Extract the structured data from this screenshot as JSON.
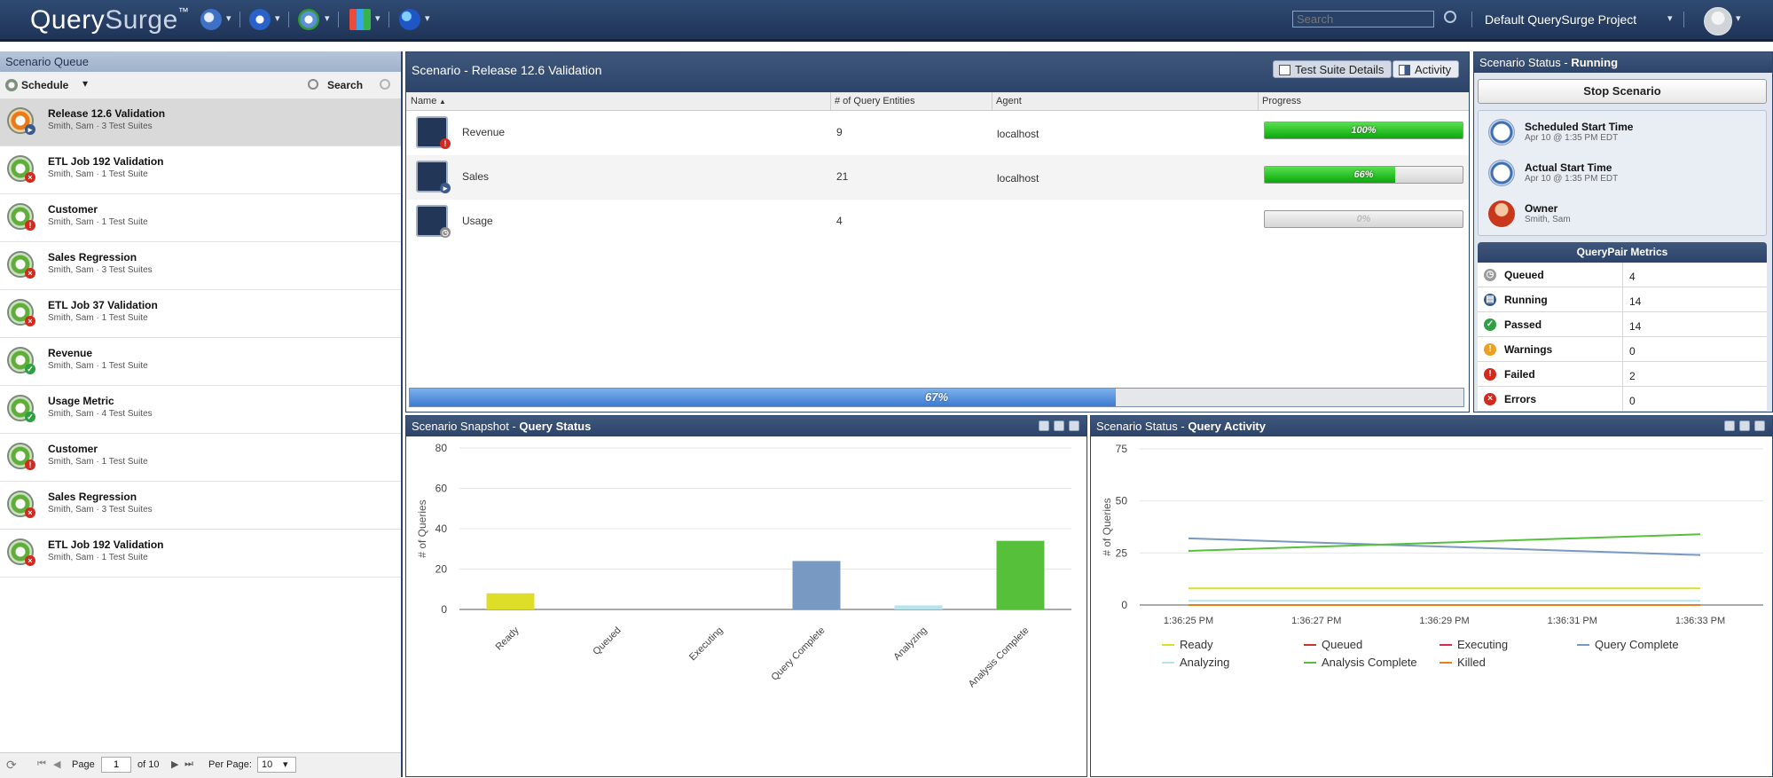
{
  "app": {
    "logo_query": "Query",
    "logo_surge": "Surge",
    "logo_tm": "™",
    "search_placeholder": "Search",
    "project": "Default QuerySurge Project"
  },
  "queue": {
    "title": "Scenario Queue",
    "schedule_label": "Schedule",
    "search_label": "Search",
    "items": [
      {
        "title": "Release 12.6 Validation",
        "sub": "Smith, Sam · 3 Test Suites",
        "status": "running"
      },
      {
        "title": "ETL Job 192 Validation",
        "sub": "Smith, Sam · 1 Test Suite",
        "status": "error"
      },
      {
        "title": "Customer",
        "sub": "Smith, Sam · 1 Test Suite",
        "status": "failed"
      },
      {
        "title": "Sales Regression",
        "sub": "Smith, Sam · 3 Test Suites",
        "status": "error"
      },
      {
        "title": "ETL Job 37 Validation",
        "sub": "Smith, Sam · 1 Test Suite",
        "status": "error"
      },
      {
        "title": "Revenue",
        "sub": "Smith, Sam · 1 Test Suite",
        "status": "passed"
      },
      {
        "title": "Usage Metric",
        "sub": "Smith, Sam · 4 Test Suites",
        "status": "passed"
      },
      {
        "title": "Customer",
        "sub": "Smith, Sam · 1 Test Suite",
        "status": "failed"
      },
      {
        "title": "Sales Regression",
        "sub": "Smith, Sam · 3 Test Suites",
        "status": "error"
      },
      {
        "title": "ETL Job 192 Validation",
        "sub": "Smith, Sam · 1 Test Suite",
        "status": "error"
      }
    ],
    "pager": {
      "page_label": "Page",
      "page_value": "1",
      "of_label": "of 10",
      "per_page_label": "Per Page:",
      "per_page_value": "10"
    }
  },
  "scenario": {
    "title": "Scenario - Release 12.6 Validation",
    "tab_details": "Test Suite Details",
    "tab_activity": "Activity",
    "columns": [
      "Name",
      "# of Query Entities",
      "Agent",
      "Progress"
    ],
    "rows": [
      {
        "name": "Revenue",
        "count": "9",
        "agent": "localhost",
        "progress": 100,
        "progress_text": "100%",
        "badge": "failed"
      },
      {
        "name": "Sales",
        "count": "21",
        "agent": "localhost",
        "progress": 66,
        "progress_text": "66%",
        "badge": "running"
      },
      {
        "name": "Usage",
        "count": "4",
        "agent": "",
        "progress": 0,
        "progress_text": "0%",
        "badge": "queued"
      }
    ],
    "overall_progress": 67,
    "overall_text": "67%"
  },
  "status": {
    "title_prefix": "Scenario Status - ",
    "title_state": "Running",
    "stop_button": "Stop Scenario",
    "scheduled_label": "Scheduled Start Time",
    "scheduled_value": "Apr 10 @ 1:35 PM EDT",
    "actual_label": "Actual Start Time",
    "actual_value": "Apr 10 @ 1:35 PM EDT",
    "owner_label": "Owner",
    "owner_value": "Smith, Sam",
    "metrics_title": "QueryPair Metrics",
    "metrics": [
      {
        "label": "Queued",
        "value": "4",
        "color": "#9a9a9a"
      },
      {
        "label": "Running",
        "value": "14",
        "color": "#3a5a8c"
      },
      {
        "label": "Passed",
        "value": "14",
        "color": "#2ea043"
      },
      {
        "label": "Warnings",
        "value": "0",
        "color": "#f0a020"
      },
      {
        "label": "Failed",
        "value": "2",
        "color": "#d42a1e"
      },
      {
        "label": "Errors",
        "value": "0",
        "color": "#d42a1e"
      }
    ]
  },
  "snapshot": {
    "title_prefix": "Scenario Snapshot - ",
    "title_bold": "Query Status"
  },
  "activity": {
    "title_prefix": "Scenario Status - ",
    "title_bold": "Query Activity"
  },
  "chart_data": [
    {
      "type": "bar",
      "ylabel": "# of Queries",
      "ylim": [
        0,
        80
      ],
      "yticks": [
        0,
        20,
        40,
        60,
        80
      ],
      "categories": [
        "Ready",
        "Queued",
        "Executing",
        "Query Complete",
        "Analyzing",
        "Analysis Complete"
      ],
      "values": [
        8,
        0,
        0,
        24,
        2,
        34
      ],
      "colors": [
        "#dede28",
        "#d9534f",
        "#e0294a",
        "#7799c2",
        "#b6e3ee",
        "#56c03b"
      ],
      "grid": true
    },
    {
      "type": "line",
      "ylabel": "# of Queries",
      "ylim": [
        0,
        75
      ],
      "yticks": [
        0,
        25,
        50,
        75
      ],
      "x": [
        "1:36:25 PM",
        "1:36:27 PM",
        "1:36:29 PM",
        "1:36:31 PM",
        "1:36:33 PM"
      ],
      "series": [
        {
          "name": "Ready",
          "values": [
            8,
            8,
            8,
            8,
            8
          ],
          "color": "#dede28"
        },
        {
          "name": "Queued",
          "values": [
            0,
            0,
            0,
            0,
            0
          ],
          "color": "#c0392b"
        },
        {
          "name": "Executing",
          "values": [
            0,
            0,
            0,
            0,
            0
          ],
          "color": "#e0294a"
        },
        {
          "name": "Query Complete",
          "values": [
            32,
            30,
            28,
            26,
            24
          ],
          "color": "#7799c2"
        },
        {
          "name": "Analyzing",
          "values": [
            2,
            2,
            2,
            2,
            2
          ],
          "color": "#b6e3ee"
        },
        {
          "name": "Analysis Complete",
          "values": [
            26,
            28,
            30,
            32,
            34
          ],
          "color": "#56c03b"
        },
        {
          "name": "Killed",
          "values": [
            0,
            0,
            0,
            0,
            0
          ],
          "color": "#e67e22"
        }
      ],
      "legend_position": "bottom",
      "grid": true
    }
  ]
}
